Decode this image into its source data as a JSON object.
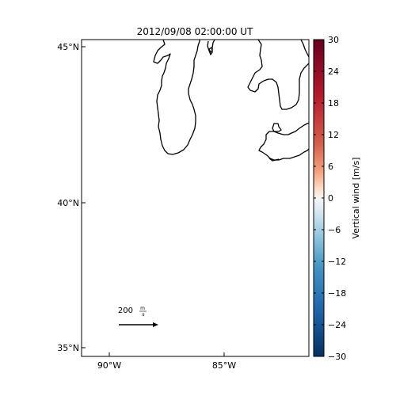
{
  "map": {
    "title": "2012/09/08 02:00:00 UT",
    "lat_ticks": [
      "45°N",
      "40°N",
      "35°N"
    ],
    "lon_ticks": [
      "90°W",
      "85°W"
    ],
    "lat_values": [
      45,
      40,
      35
    ],
    "lon_values": [
      -90,
      -85
    ],
    "extent": {
      "lon_min": -91.2,
      "lon_max": -81.3,
      "lat_min": 34.8,
      "lat_max": 45.2
    },
    "coastline_color": "#000000",
    "scale_arrow": {
      "value": "200",
      "unit_num": "m",
      "unit_den": "s"
    }
  },
  "colorbar": {
    "label": "Vertical wind [m/s]",
    "ticks": [
      "30",
      "24",
      "18",
      "12",
      "6",
      "0",
      "−6",
      "−12",
      "−18",
      "−24",
      "−30"
    ],
    "min": -30,
    "max": 30,
    "colors": {
      "top": "#67001f",
      "upper_mid": "#d6604d",
      "light_warm": "#fddbc7",
      "center": "#f7f7f7",
      "light_cool": "#d1e5f0",
      "lower_mid": "#4393c3",
      "bottom": "#053061"
    }
  }
}
